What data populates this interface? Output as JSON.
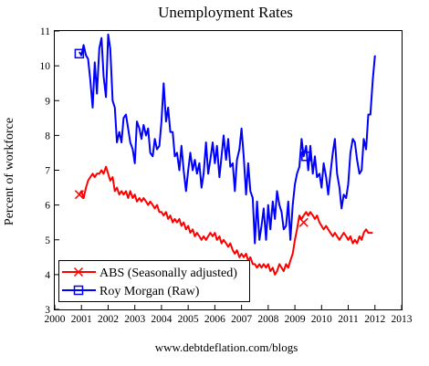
{
  "chart_data": {
    "type": "line",
    "title": "Unemployment Rates",
    "xlabel": "",
    "ylabel": "Percent of workforce",
    "xlim": [
      2000,
      2013
    ],
    "ylim": [
      3,
      11
    ],
    "x_ticks": [
      "2000",
      "2001",
      "2002",
      "2003",
      "2004",
      "2005",
      "2006",
      "2007",
      "2008",
      "2009",
      "2010",
      "2011",
      "2012",
      "2013"
    ],
    "y_ticks": [
      "3",
      "4",
      "5",
      "6",
      "7",
      "8",
      "9",
      "10",
      "11"
    ],
    "grid": false,
    "legend_position": "bottom-left",
    "series": [
      {
        "name": "ABS (Seasonally adjusted)",
        "color": "#ff0000",
        "marker": "x",
        "points": [
          [
            2000.92,
            6.3
          ],
          [
            2001.0,
            6.4
          ],
          [
            2001.08,
            6.2
          ],
          [
            2001.17,
            6.5
          ],
          [
            2001.25,
            6.7
          ],
          [
            2001.33,
            6.8
          ],
          [
            2001.42,
            6.9
          ],
          [
            2001.5,
            6.8
          ],
          [
            2001.58,
            6.9
          ],
          [
            2001.67,
            6.9
          ],
          [
            2001.75,
            7.0
          ],
          [
            2001.83,
            6.9
          ],
          [
            2001.92,
            7.1
          ],
          [
            2002.0,
            6.9
          ],
          [
            2002.08,
            6.7
          ],
          [
            2002.17,
            6.8
          ],
          [
            2002.25,
            6.4
          ],
          [
            2002.33,
            6.5
          ],
          [
            2002.42,
            6.3
          ],
          [
            2002.5,
            6.4
          ],
          [
            2002.58,
            6.3
          ],
          [
            2002.67,
            6.4
          ],
          [
            2002.75,
            6.2
          ],
          [
            2002.83,
            6.4
          ],
          [
            2002.92,
            6.2
          ],
          [
            2003.0,
            6.3
          ],
          [
            2003.08,
            6.1
          ],
          [
            2003.17,
            6.2
          ],
          [
            2003.25,
            6.1
          ],
          [
            2003.33,
            6.2
          ],
          [
            2003.42,
            6.1
          ],
          [
            2003.5,
            6.0
          ],
          [
            2003.58,
            6.1
          ],
          [
            2003.67,
            6.0
          ],
          [
            2003.75,
            5.9
          ],
          [
            2003.83,
            6.0
          ],
          [
            2003.92,
            5.8
          ],
          [
            2004.0,
            5.8
          ],
          [
            2004.08,
            5.7
          ],
          [
            2004.17,
            5.8
          ],
          [
            2004.25,
            5.6
          ],
          [
            2004.33,
            5.7
          ],
          [
            2004.42,
            5.5
          ],
          [
            2004.5,
            5.6
          ],
          [
            2004.58,
            5.5
          ],
          [
            2004.67,
            5.6
          ],
          [
            2004.75,
            5.4
          ],
          [
            2004.83,
            5.5
          ],
          [
            2004.92,
            5.3
          ],
          [
            2005.0,
            5.4
          ],
          [
            2005.08,
            5.2
          ],
          [
            2005.17,
            5.3
          ],
          [
            2005.25,
            5.1
          ],
          [
            2005.33,
            5.2
          ],
          [
            2005.42,
            5.1
          ],
          [
            2005.5,
            5.0
          ],
          [
            2005.58,
            5.1
          ],
          [
            2005.67,
            5.0
          ],
          [
            2005.75,
            5.1
          ],
          [
            2005.83,
            5.2
          ],
          [
            2005.92,
            5.1
          ],
          [
            2006.0,
            5.2
          ],
          [
            2006.08,
            5.0
          ],
          [
            2006.17,
            5.1
          ],
          [
            2006.25,
            4.9
          ],
          [
            2006.33,
            5.0
          ],
          [
            2006.42,
            4.9
          ],
          [
            2006.5,
            4.8
          ],
          [
            2006.58,
            4.9
          ],
          [
            2006.67,
            4.7
          ],
          [
            2006.75,
            4.6
          ],
          [
            2006.83,
            4.7
          ],
          [
            2006.92,
            4.5
          ],
          [
            2007.0,
            4.6
          ],
          [
            2007.08,
            4.5
          ],
          [
            2007.17,
            4.6
          ],
          [
            2007.25,
            4.4
          ],
          [
            2007.33,
            4.5
          ],
          [
            2007.42,
            4.3
          ],
          [
            2007.5,
            4.3
          ],
          [
            2007.58,
            4.2
          ],
          [
            2007.67,
            4.3
          ],
          [
            2007.75,
            4.2
          ],
          [
            2007.83,
            4.3
          ],
          [
            2007.92,
            4.2
          ],
          [
            2008.0,
            4.3
          ],
          [
            2008.08,
            4.1
          ],
          [
            2008.17,
            4.2
          ],
          [
            2008.25,
            4.0
          ],
          [
            2008.33,
            4.1
          ],
          [
            2008.42,
            4.3
          ],
          [
            2008.5,
            4.2
          ],
          [
            2008.58,
            4.1
          ],
          [
            2008.67,
            4.3
          ],
          [
            2008.75,
            4.2
          ],
          [
            2008.83,
            4.4
          ],
          [
            2008.92,
            4.6
          ],
          [
            2009.0,
            5.0
          ],
          [
            2009.08,
            5.3
          ],
          [
            2009.17,
            5.7
          ],
          [
            2009.25,
            5.6
          ],
          [
            2009.33,
            5.7
          ],
          [
            2009.42,
            5.8
          ],
          [
            2009.5,
            5.7
          ],
          [
            2009.58,
            5.8
          ],
          [
            2009.67,
            5.7
          ],
          [
            2009.75,
            5.6
          ],
          [
            2009.83,
            5.7
          ],
          [
            2009.92,
            5.5
          ],
          [
            2010.0,
            5.4
          ],
          [
            2010.08,
            5.3
          ],
          [
            2010.17,
            5.4
          ],
          [
            2010.25,
            5.3
          ],
          [
            2010.33,
            5.2
          ],
          [
            2010.42,
            5.1
          ],
          [
            2010.5,
            5.2
          ],
          [
            2010.58,
            5.1
          ],
          [
            2010.67,
            5.0
          ],
          [
            2010.75,
            5.1
          ],
          [
            2010.83,
            5.2
          ],
          [
            2010.92,
            5.1
          ],
          [
            2011.0,
            5.0
          ],
          [
            2011.08,
            5.1
          ],
          [
            2011.17,
            4.9
          ],
          [
            2011.25,
            5.0
          ],
          [
            2011.33,
            4.9
          ],
          [
            2011.42,
            5.1
          ],
          [
            2011.5,
            5.0
          ],
          [
            2011.58,
            5.2
          ],
          [
            2011.67,
            5.3
          ],
          [
            2011.75,
            5.2
          ],
          [
            2011.83,
            5.2
          ],
          [
            2011.92,
            5.2
          ]
        ],
        "markers": [
          [
            2000.92,
            6.3
          ],
          [
            2009.33,
            5.5
          ]
        ]
      },
      {
        "name": "Roy Morgan (Raw)",
        "color": "#0000ff",
        "marker": "square",
        "points": [
          [
            2000.92,
            10.4
          ],
          [
            2001.0,
            10.3
          ],
          [
            2001.08,
            10.6
          ],
          [
            2001.17,
            10.3
          ],
          [
            2001.25,
            10.2
          ],
          [
            2001.33,
            9.6
          ],
          [
            2001.42,
            8.8
          ],
          [
            2001.5,
            10.1
          ],
          [
            2001.58,
            9.2
          ],
          [
            2001.67,
            10.5
          ],
          [
            2001.75,
            10.8
          ],
          [
            2001.83,
            9.7
          ],
          [
            2001.92,
            9.1
          ],
          [
            2002.0,
            10.9
          ],
          [
            2002.08,
            10.5
          ],
          [
            2002.17,
            9.0
          ],
          [
            2002.25,
            8.8
          ],
          [
            2002.33,
            7.8
          ],
          [
            2002.42,
            8.1
          ],
          [
            2002.5,
            7.8
          ],
          [
            2002.58,
            8.5
          ],
          [
            2002.67,
            8.6
          ],
          [
            2002.75,
            8.2
          ],
          [
            2002.83,
            7.8
          ],
          [
            2002.92,
            7.6
          ],
          [
            2003.0,
            7.2
          ],
          [
            2003.08,
            8.4
          ],
          [
            2003.17,
            8.2
          ],
          [
            2003.25,
            7.9
          ],
          [
            2003.33,
            8.3
          ],
          [
            2003.42,
            8.0
          ],
          [
            2003.5,
            8.2
          ],
          [
            2003.58,
            7.5
          ],
          [
            2003.67,
            7.4
          ],
          [
            2003.75,
            7.9
          ],
          [
            2003.83,
            7.6
          ],
          [
            2003.92,
            7.7
          ],
          [
            2004.0,
            8.4
          ],
          [
            2004.08,
            9.5
          ],
          [
            2004.17,
            8.4
          ],
          [
            2004.25,
            8.8
          ],
          [
            2004.33,
            8.1
          ],
          [
            2004.42,
            8.1
          ],
          [
            2004.5,
            7.4
          ],
          [
            2004.58,
            7.5
          ],
          [
            2004.67,
            7.0
          ],
          [
            2004.75,
            7.7
          ],
          [
            2004.83,
            7.0
          ],
          [
            2004.92,
            6.4
          ],
          [
            2005.0,
            7.0
          ],
          [
            2005.08,
            7.5
          ],
          [
            2005.17,
            7.0
          ],
          [
            2005.25,
            7.3
          ],
          [
            2005.33,
            6.9
          ],
          [
            2005.42,
            7.2
          ],
          [
            2005.5,
            6.5
          ],
          [
            2005.58,
            6.9
          ],
          [
            2005.67,
            7.8
          ],
          [
            2005.75,
            6.9
          ],
          [
            2005.83,
            7.3
          ],
          [
            2005.92,
            7.8
          ],
          [
            2006.0,
            7.2
          ],
          [
            2006.08,
            7.7
          ],
          [
            2006.17,
            6.8
          ],
          [
            2006.25,
            7.4
          ],
          [
            2006.33,
            8.0
          ],
          [
            2006.42,
            7.3
          ],
          [
            2006.5,
            7.9
          ],
          [
            2006.58,
            7.1
          ],
          [
            2006.67,
            7.2
          ],
          [
            2006.75,
            6.4
          ],
          [
            2006.83,
            7.3
          ],
          [
            2006.92,
            7.6
          ],
          [
            2007.0,
            8.2
          ],
          [
            2007.08,
            7.4
          ],
          [
            2007.17,
            6.3
          ],
          [
            2007.25,
            7.2
          ],
          [
            2007.33,
            6.4
          ],
          [
            2007.42,
            6.2
          ],
          [
            2007.5,
            4.9
          ],
          [
            2007.58,
            6.1
          ],
          [
            2007.67,
            5.0
          ],
          [
            2007.75,
            5.4
          ],
          [
            2007.83,
            5.9
          ],
          [
            2007.92,
            5.0
          ],
          [
            2008.0,
            6.0
          ],
          [
            2008.08,
            5.3
          ],
          [
            2008.17,
            6.1
          ],
          [
            2008.25,
            5.6
          ],
          [
            2008.33,
            6.4
          ],
          [
            2008.42,
            6.0
          ],
          [
            2008.5,
            5.8
          ],
          [
            2008.58,
            5.3
          ],
          [
            2008.67,
            5.4
          ],
          [
            2008.75,
            6.1
          ],
          [
            2008.83,
            5.0
          ],
          [
            2008.92,
            6.0
          ],
          [
            2009.0,
            6.6
          ],
          [
            2009.08,
            6.9
          ],
          [
            2009.17,
            7.1
          ],
          [
            2009.25,
            7.9
          ],
          [
            2009.33,
            7.4
          ],
          [
            2009.42,
            7.7
          ],
          [
            2009.5,
            7.0
          ],
          [
            2009.58,
            7.7
          ],
          [
            2009.67,
            6.9
          ],
          [
            2009.75,
            7.4
          ],
          [
            2009.83,
            6.8
          ],
          [
            2009.92,
            6.9
          ],
          [
            2010.0,
            6.5
          ],
          [
            2010.08,
            7.2
          ],
          [
            2010.17,
            6.8
          ],
          [
            2010.25,
            6.3
          ],
          [
            2010.33,
            6.9
          ],
          [
            2010.42,
            7.5
          ],
          [
            2010.5,
            7.9
          ],
          [
            2010.58,
            6.9
          ],
          [
            2010.67,
            6.5
          ],
          [
            2010.75,
            5.9
          ],
          [
            2010.83,
            6.3
          ],
          [
            2010.92,
            6.2
          ],
          [
            2011.0,
            6.6
          ],
          [
            2011.08,
            7.5
          ],
          [
            2011.17,
            7.9
          ],
          [
            2011.25,
            7.8
          ],
          [
            2011.33,
            7.3
          ],
          [
            2011.42,
            6.9
          ],
          [
            2011.5,
            7.0
          ],
          [
            2011.58,
            7.9
          ],
          [
            2011.67,
            7.6
          ],
          [
            2011.75,
            8.6
          ],
          [
            2011.83,
            8.6
          ],
          [
            2011.92,
            9.6
          ],
          [
            2012.0,
            10.3
          ]
        ],
        "markers": [
          [
            2000.92,
            10.35
          ],
          [
            2009.42,
            7.4
          ]
        ]
      }
    ],
    "source": "www.debtdeflation.com/blogs"
  }
}
